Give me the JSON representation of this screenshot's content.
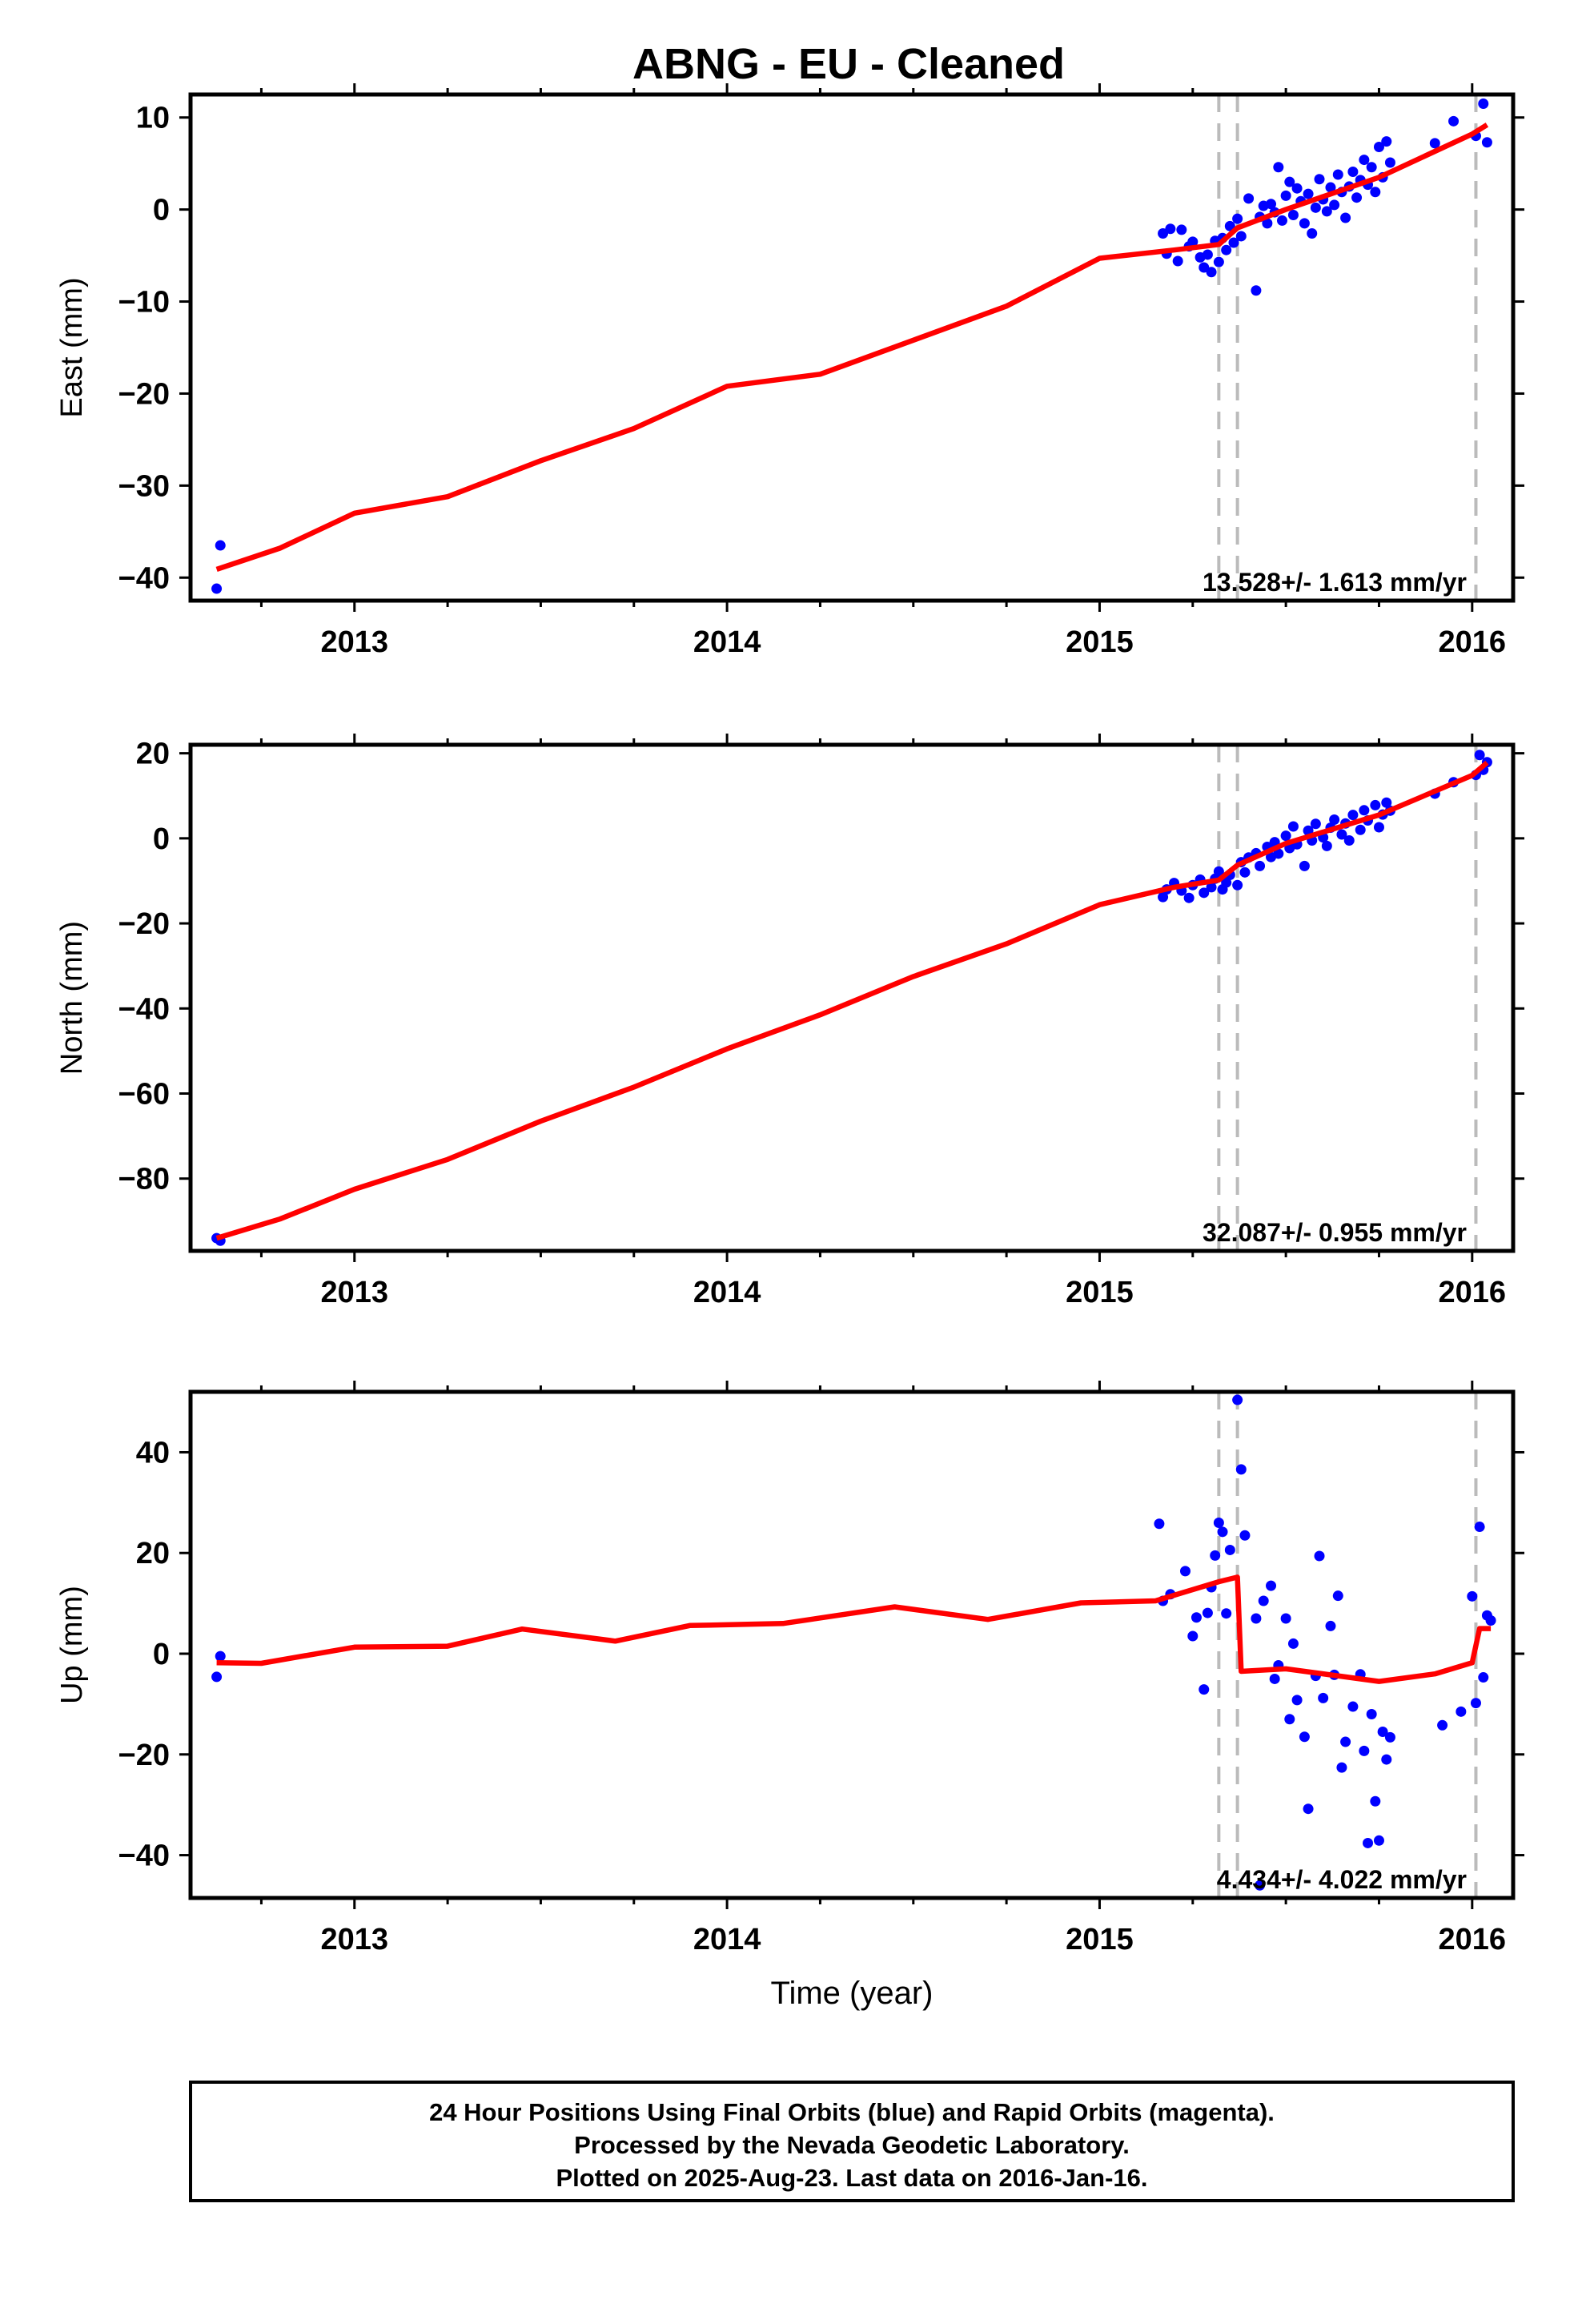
{
  "title": "ABNG  - EU - Cleaned",
  "colors": {
    "points": "#0000ff",
    "model": "#ff0000",
    "event_lines": "#bbbbbb",
    "frame": "#000000"
  },
  "footer": {
    "line1": "24 Hour Positions Using Final Orbits (blue) and Rapid Orbits (magenta).",
    "line2": "Processed by the Nevada Geodetic Laboratory.",
    "line3": "Plotted on 2025-Aug-23. Last data on 2016-Jan-16."
  },
  "chart_data": [
    {
      "type": "scatter",
      "name": "east",
      "ylabel": "East (mm)",
      "xlabel": "",
      "xlim": [
        2012.56,
        2016.11
      ],
      "ylim": [
        -42.5,
        12.5
      ],
      "x_ticks": [
        2013,
        2014,
        2015,
        2016
      ],
      "y_ticks": [
        -40,
        -30,
        -20,
        -10,
        0,
        10
      ],
      "y_tick_labels": [
        "−40",
        "−30",
        "−20",
        "−10",
        "0",
        "10"
      ],
      "rate_label": "13.528+/- 1.613 mm/yr",
      "event_lines": [
        2015.32,
        2015.37,
        2016.01
      ],
      "points": [
        [
          2012.63,
          -41.2
        ],
        [
          2012.64,
          -36.5
        ],
        [
          2015.17,
          -2.6
        ],
        [
          2015.18,
          -4.8
        ],
        [
          2015.19,
          -2.1
        ],
        [
          2015.21,
          -5.6
        ],
        [
          2015.22,
          -2.2
        ],
        [
          2015.24,
          -4.0
        ],
        [
          2015.25,
          -3.5
        ],
        [
          2015.27,
          -5.2
        ],
        [
          2015.28,
          -6.3
        ],
        [
          2015.29,
          -4.9
        ],
        [
          2015.3,
          -6.8
        ],
        [
          2015.31,
          -3.4
        ],
        [
          2015.32,
          -5.7
        ],
        [
          2015.33,
          -3.1
        ],
        [
          2015.34,
          -4.4
        ],
        [
          2015.35,
          -1.8
        ],
        [
          2015.36,
          -3.6
        ],
        [
          2015.37,
          -1.0
        ],
        [
          2015.38,
          -2.9
        ],
        [
          2015.4,
          1.2
        ],
        [
          2015.42,
          -8.8
        ],
        [
          2015.43,
          -0.8
        ],
        [
          2015.44,
          0.4
        ],
        [
          2015.45,
          -1.5
        ],
        [
          2015.46,
          0.6
        ],
        [
          2015.47,
          -0.3
        ],
        [
          2015.48,
          4.6
        ],
        [
          2015.49,
          -1.2
        ],
        [
          2015.5,
          1.5
        ],
        [
          2015.51,
          3.0
        ],
        [
          2015.52,
          -0.6
        ],
        [
          2015.53,
          2.3
        ],
        [
          2015.54,
          0.9
        ],
        [
          2015.55,
          -1.5
        ],
        [
          2015.56,
          1.7
        ],
        [
          2015.57,
          -2.6
        ],
        [
          2015.58,
          0.2
        ],
        [
          2015.59,
          3.3
        ],
        [
          2015.6,
          1.1
        ],
        [
          2015.61,
          -0.2
        ],
        [
          2015.62,
          2.4
        ],
        [
          2015.63,
          0.5
        ],
        [
          2015.64,
          3.8
        ],
        [
          2015.65,
          1.9
        ],
        [
          2015.66,
          -0.9
        ],
        [
          2015.67,
          2.5
        ],
        [
          2015.68,
          4.1
        ],
        [
          2015.69,
          1.3
        ],
        [
          2015.7,
          3.2
        ],
        [
          2015.71,
          5.4
        ],
        [
          2015.72,
          2.7
        ],
        [
          2015.73,
          4.6
        ],
        [
          2015.74,
          1.9
        ],
        [
          2015.75,
          6.8
        ],
        [
          2015.76,
          3.5
        ],
        [
          2015.77,
          7.4
        ],
        [
          2015.78,
          5.1
        ],
        [
          2015.9,
          7.2
        ],
        [
          2015.95,
          9.6
        ],
        [
          2016.01,
          8.0
        ],
        [
          2016.03,
          11.5
        ],
        [
          2016.04,
          7.3
        ]
      ],
      "model": [
        [
          2012.63,
          -39.1
        ],
        [
          2012.8,
          -36.8
        ],
        [
          2013.0,
          -33.0
        ],
        [
          2013.25,
          -31.2
        ],
        [
          2013.5,
          -27.3
        ],
        [
          2013.75,
          -23.8
        ],
        [
          2014.0,
          -19.2
        ],
        [
          2014.25,
          -17.9
        ],
        [
          2014.5,
          -14.2
        ],
        [
          2014.75,
          -10.5
        ],
        [
          2015.0,
          -5.3
        ],
        [
          2015.2,
          -4.4
        ],
        [
          2015.32,
          -3.8
        ],
        [
          2015.37,
          -2.0
        ],
        [
          2015.5,
          0.0
        ],
        [
          2015.75,
          3.5
        ],
        [
          2016.0,
          8.2
        ],
        [
          2016.04,
          9.2
        ]
      ]
    },
    {
      "type": "scatter",
      "name": "north",
      "ylabel": "North (mm)",
      "xlabel": "",
      "xlim": [
        2012.56,
        2016.11
      ],
      "ylim": [
        -97,
        22
      ],
      "x_ticks": [
        2013,
        2014,
        2015,
        2016
      ],
      "y_ticks": [
        -80,
        -60,
        -40,
        -20,
        0,
        20
      ],
      "y_tick_labels": [
        "−80",
        "−60",
        "−40",
        "−20",
        "0",
        "20"
      ],
      "rate_label": "32.087+/- 0.955 mm/yr",
      "event_lines": [
        2015.32,
        2015.37,
        2016.01
      ],
      "points": [
        [
          2012.63,
          -94.0
        ],
        [
          2012.64,
          -94.6
        ],
        [
          2015.17,
          -13.8
        ],
        [
          2015.18,
          -12.0
        ],
        [
          2015.2,
          -10.5
        ],
        [
          2015.22,
          -12.3
        ],
        [
          2015.24,
          -14.0
        ],
        [
          2015.25,
          -11.0
        ],
        [
          2015.27,
          -9.7
        ],
        [
          2015.28,
          -12.8
        ],
        [
          2015.3,
          -11.5
        ],
        [
          2015.31,
          -9.5
        ],
        [
          2015.32,
          -7.8
        ],
        [
          2015.33,
          -12.0
        ],
        [
          2015.34,
          -10.4
        ],
        [
          2015.35,
          -8.6
        ],
        [
          2015.37,
          -11.0
        ],
        [
          2015.38,
          -5.6
        ],
        [
          2015.39,
          -8.0
        ],
        [
          2015.4,
          -4.5
        ],
        [
          2015.42,
          -3.5
        ],
        [
          2015.43,
          -6.5
        ],
        [
          2015.45,
          -2.0
        ],
        [
          2015.46,
          -4.4
        ],
        [
          2015.47,
          -0.9
        ],
        [
          2015.48,
          -3.6
        ],
        [
          2015.5,
          0.6
        ],
        [
          2015.51,
          -2.3
        ],
        [
          2015.52,
          2.8
        ],
        [
          2015.53,
          -1.4
        ],
        [
          2015.55,
          -6.5
        ],
        [
          2015.56,
          1.8
        ],
        [
          2015.57,
          -0.5
        ],
        [
          2015.58,
          3.4
        ],
        [
          2015.6,
          0.2
        ],
        [
          2015.61,
          -1.8
        ],
        [
          2015.62,
          2.5
        ],
        [
          2015.63,
          4.4
        ],
        [
          2015.65,
          0.9
        ],
        [
          2015.66,
          3.5
        ],
        [
          2015.67,
          -0.5
        ],
        [
          2015.68,
          5.5
        ],
        [
          2015.7,
          2.0
        ],
        [
          2015.71,
          6.6
        ],
        [
          2015.72,
          4.2
        ],
        [
          2015.74,
          7.8
        ],
        [
          2015.75,
          2.6
        ],
        [
          2015.76,
          5.6
        ],
        [
          2015.77,
          8.4
        ],
        [
          2015.78,
          6.5
        ],
        [
          2015.9,
          10.5
        ],
        [
          2015.95,
          13.2
        ],
        [
          2016.01,
          14.9
        ],
        [
          2016.02,
          19.6
        ],
        [
          2016.03,
          16.1
        ],
        [
          2016.04,
          17.9
        ]
      ],
      "model": [
        [
          2012.63,
          -94.0
        ],
        [
          2012.8,
          -89.5
        ],
        [
          2013.0,
          -82.5
        ],
        [
          2013.25,
          -75.5
        ],
        [
          2013.5,
          -66.5
        ],
        [
          2013.75,
          -58.5
        ],
        [
          2014.0,
          -49.5
        ],
        [
          2014.25,
          -41.5
        ],
        [
          2014.5,
          -32.5
        ],
        [
          2014.75,
          -24.8
        ],
        [
          2015.0,
          -15.6
        ],
        [
          2015.2,
          -11.5
        ],
        [
          2015.32,
          -9.8
        ],
        [
          2015.37,
          -6.3
        ],
        [
          2015.5,
          -1.2
        ],
        [
          2015.75,
          5.5
        ],
        [
          2016.0,
          14.8
        ],
        [
          2016.04,
          17.8
        ]
      ]
    },
    {
      "type": "scatter",
      "name": "up",
      "ylabel": "Up (mm)",
      "xlabel": "Time (year)",
      "xlim": [
        2012.56,
        2016.11
      ],
      "ylim": [
        -48.5,
        52
      ],
      "x_ticks": [
        2013,
        2014,
        2015,
        2016
      ],
      "y_ticks": [
        -40,
        -20,
        0,
        20,
        40
      ],
      "y_tick_labels": [
        "−40",
        "−20",
        "0",
        "20",
        "40"
      ],
      "rate_label": "4.434+/- 4.022 mm/yr",
      "event_lines": [
        2015.32,
        2015.37,
        2016.01
      ],
      "points": [
        [
          2012.63,
          -4.6
        ],
        [
          2012.64,
          -0.5
        ],
        [
          2015.16,
          25.8
        ],
        [
          2015.17,
          10.5
        ],
        [
          2015.19,
          11.8
        ],
        [
          2015.23,
          16.4
        ],
        [
          2015.25,
          3.5
        ],
        [
          2015.26,
          7.2
        ],
        [
          2015.28,
          -7.1
        ],
        [
          2015.29,
          8.1
        ],
        [
          2015.3,
          13.2
        ],
        [
          2015.31,
          19.5
        ],
        [
          2015.32,
          26.0
        ],
        [
          2015.33,
          24.2
        ],
        [
          2015.34,
          8.0
        ],
        [
          2015.35,
          20.6
        ],
        [
          2015.37,
          50.4
        ],
        [
          2015.38,
          36.6
        ],
        [
          2015.39,
          23.5
        ],
        [
          2015.42,
          7.0
        ],
        [
          2015.43,
          -46.0
        ],
        [
          2015.44,
          10.5
        ],
        [
          2015.46,
          13.5
        ],
        [
          2015.47,
          -5.0
        ],
        [
          2015.48,
          -2.3
        ],
        [
          2015.5,
          7.0
        ],
        [
          2015.51,
          -13.0
        ],
        [
          2015.52,
          2.0
        ],
        [
          2015.53,
          -9.2
        ],
        [
          2015.55,
          -16.5
        ],
        [
          2015.56,
          -30.8
        ],
        [
          2015.58,
          -4.4
        ],
        [
          2015.59,
          19.4
        ],
        [
          2015.6,
          -8.8
        ],
        [
          2015.62,
          5.5
        ],
        [
          2015.63,
          -4.2
        ],
        [
          2015.64,
          11.5
        ],
        [
          2015.65,
          -22.6
        ],
        [
          2015.66,
          -17.5
        ],
        [
          2015.68,
          -10.5
        ],
        [
          2015.7,
          -4.1
        ],
        [
          2015.71,
          -19.3
        ],
        [
          2015.72,
          -37.6
        ],
        [
          2015.73,
          -12.0
        ],
        [
          2015.74,
          -29.3
        ],
        [
          2015.75,
          -37.1
        ],
        [
          2015.76,
          -15.5
        ],
        [
          2015.77,
          -21.0
        ],
        [
          2015.78,
          -16.6
        ],
        [
          2015.92,
          -14.2
        ],
        [
          2015.97,
          -11.5
        ],
        [
          2016.0,
          11.4
        ],
        [
          2016.01,
          -9.8
        ],
        [
          2016.02,
          25.2
        ],
        [
          2016.03,
          -4.7
        ],
        [
          2016.04,
          7.6
        ],
        [
          2016.05,
          6.6
        ]
      ],
      "model": [
        [
          2012.63,
          -1.8
        ],
        [
          2012.75,
          -1.9
        ],
        [
          2013.0,
          1.3
        ],
        [
          2013.25,
          1.5
        ],
        [
          2013.45,
          4.9
        ],
        [
          2013.7,
          2.5
        ],
        [
          2013.9,
          5.6
        ],
        [
          2014.15,
          6.0
        ],
        [
          2014.45,
          9.3
        ],
        [
          2014.7,
          6.8
        ],
        [
          2014.95,
          10.1
        ],
        [
          2015.15,
          10.5
        ],
        [
          2015.32,
          14.3
        ],
        [
          2015.37,
          15.2
        ],
        [
          2015.38,
          -3.5
        ],
        [
          2015.5,
          -3.0
        ],
        [
          2015.75,
          -5.5
        ],
        [
          2015.9,
          -4.0
        ],
        [
          2016.0,
          -1.8
        ],
        [
          2016.02,
          5.0
        ],
        [
          2016.05,
          5.0
        ]
      ]
    }
  ]
}
